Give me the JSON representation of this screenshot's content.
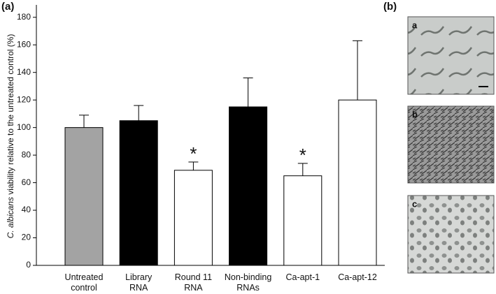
{
  "panel_a_label": "(a)",
  "panel_b_label": "(b)",
  "chart_data": {
    "type": "bar",
    "y_label_italic": "C. albicans",
    "y_label": "viability relative to the untreated control (%)",
    "categories": [
      "Untreated\ncontrol",
      "Library\nRNA",
      "Round 11\nRNA",
      "Non-binding\nRNAs",
      "Ca-apt-1",
      "Ca-apt-12"
    ],
    "values": [
      100,
      105,
      69,
      115,
      65,
      120
    ],
    "errors": [
      9,
      11,
      6,
      21,
      9,
      43
    ],
    "colors": [
      "#a3a3a3",
      "#000000",
      "#ffffff",
      "#000000",
      "#ffffff",
      "#ffffff"
    ],
    "markers": [
      null,
      null,
      "*",
      null,
      "*",
      null
    ],
    "ylim": [
      0,
      189
    ],
    "yticks": [
      0,
      20,
      40,
      60,
      80,
      100,
      120,
      140,
      160,
      180
    ]
  },
  "images": [
    {
      "label": "a"
    },
    {
      "label": "b"
    },
    {
      "label": "c"
    }
  ]
}
